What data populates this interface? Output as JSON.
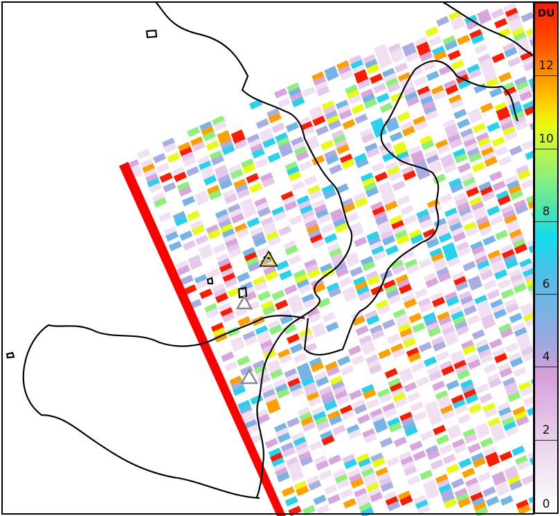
{
  "colorbar": {
    "unit_label": "DU",
    "range": [
      0,
      14
    ],
    "ticks": [
      0,
      2,
      4,
      6,
      8,
      10,
      12,
      14
    ],
    "tick_labels": [
      "0",
      "2",
      "4",
      "6",
      "8",
      "10",
      "12",
      ""
    ],
    "colors": [
      "#ffffff",
      "#d69fdb",
      "#9aa8e0",
      "#12dcef",
      "#8ef07a",
      "#e8fb10",
      "#ff9000",
      "#ff1a00"
    ]
  },
  "markers": [
    {
      "type": "triangle",
      "color": "#e8d800"
    },
    {
      "type": "triangle",
      "color": "#888888"
    },
    {
      "type": "triangle",
      "color": "#888888"
    }
  ]
}
